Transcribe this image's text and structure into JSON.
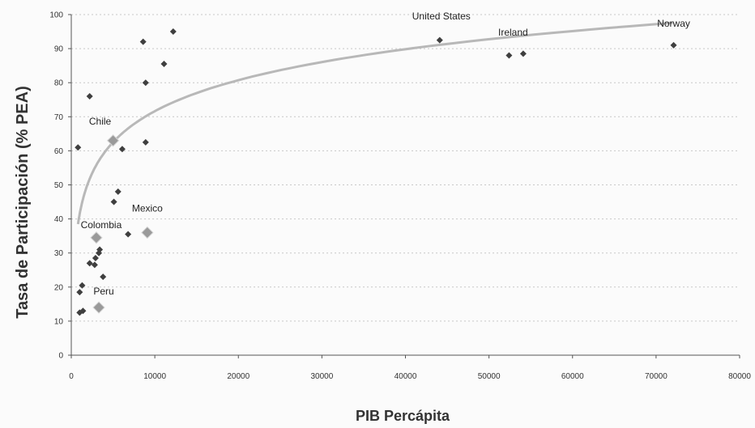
{
  "chart_data": {
    "type": "scatter",
    "title": "",
    "xlabel": "PIB Percápita",
    "ylabel": "Tasa de Participación  (% PEA)",
    "xlim": [
      0,
      80000
    ],
    "ylim": [
      0,
      100
    ],
    "xticks": [
      0,
      10000,
      20000,
      30000,
      40000,
      50000,
      60000,
      70000,
      80000
    ],
    "yticks": [
      0,
      10,
      20,
      30,
      40,
      50,
      60,
      70,
      80,
      90,
      100
    ],
    "grid": "horizontal dotted",
    "legend": "none",
    "colors": {
      "points": "#3f3f3f",
      "highlight": "#9a9a9a",
      "trend": "#b8b8b8",
      "axis": "#555555",
      "grid": "#c8c8c8"
    },
    "series": [
      {
        "points": [
          {
            "x": 1000,
            "y": 18.5
          },
          {
            "x": 1000,
            "y": 12.5
          },
          {
            "x": 1400,
            "y": 13
          },
          {
            "x": 800,
            "y": 61
          },
          {
            "x": 1300,
            "y": 20.5
          },
          {
            "x": 2200,
            "y": 76
          },
          {
            "x": 2200,
            "y": 27
          },
          {
            "x": 2800,
            "y": 26.5
          },
          {
            "x": 2900,
            "y": 28.5
          },
          {
            "x": 3300,
            "y": 30
          },
          {
            "x": 3400,
            "y": 31
          },
          {
            "x": 3800,
            "y": 23
          },
          {
            "x": 5100,
            "y": 45
          },
          {
            "x": 5600,
            "y": 48
          },
          {
            "x": 6100,
            "y": 60.5
          },
          {
            "x": 6800,
            "y": 35.5
          },
          {
            "x": 8600,
            "y": 92
          },
          {
            "x": 8900,
            "y": 80
          },
          {
            "x": 8900,
            "y": 62.5
          },
          {
            "x": 11100,
            "y": 85.5
          },
          {
            "x": 12200,
            "y": 95
          },
          {
            "x": 44100,
            "y": 92.5
          },
          {
            "x": 52400,
            "y": 88
          },
          {
            "x": 54100,
            "y": 88.5
          },
          {
            "x": 72100,
            "y": 91
          }
        ]
      },
      {
        "points": [
          {
            "x": 5000,
            "y": 63,
            "label": "Chile"
          },
          {
            "x": 9100,
            "y": 36,
            "label": "Mexico"
          },
          {
            "x": 3000,
            "y": 34.5,
            "label": "Colombia"
          },
          {
            "x": 3300,
            "y": 14,
            "label": "Peru"
          }
        ]
      }
    ],
    "annotations": [
      {
        "text": "United States",
        "x": 44100
      },
      {
        "text": "Ireland",
        "x": 52400
      },
      {
        "text": "Norway",
        "x": 72100
      }
    ],
    "trendline": {
      "type": "logarithmic",
      "a": -49.3,
      "b": 13.13,
      "x_from": 800,
      "x_to": 72000
    }
  }
}
